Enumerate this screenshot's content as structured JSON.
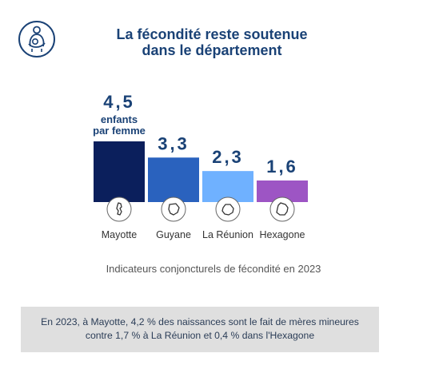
{
  "header": {
    "title_line1": "La fécondité reste soutenue",
    "title_line2": "dans le département"
  },
  "chart_data": {
    "type": "bar",
    "categories": [
      "Mayotte",
      "Guyane",
      "La Réunion",
      "Hexagone"
    ],
    "values": [
      4.5,
      3.3,
      2.3,
      1.6
    ],
    "value_labels": [
      "4,5",
      "3,3",
      "2,3",
      "1,6"
    ],
    "unit_annotation": [
      "enfants",
      "par femme"
    ],
    "colors": [
      "#0b1f5c",
      "#2a62be",
      "#6fb1ff",
      "#9d55c4"
    ],
    "icons": [
      "mayotte-map-icon",
      "guyane-map-icon",
      "reunion-map-icon",
      "france-map-icon"
    ],
    "title": "",
    "xlabel": "",
    "ylabel": "",
    "grid": false,
    "legend": "none"
  },
  "caption": "Indicateurs conjoncturels de fécondité en 2023",
  "note": {
    "line1": "En 2023, à Mayotte, 4,2 % des naissances  sont le fait de mères mineures",
    "line2": "contre 1,7 % à La Réunion et 0,4 % dans l'Hexagone"
  },
  "logo_icon": "mother-child-icon"
}
